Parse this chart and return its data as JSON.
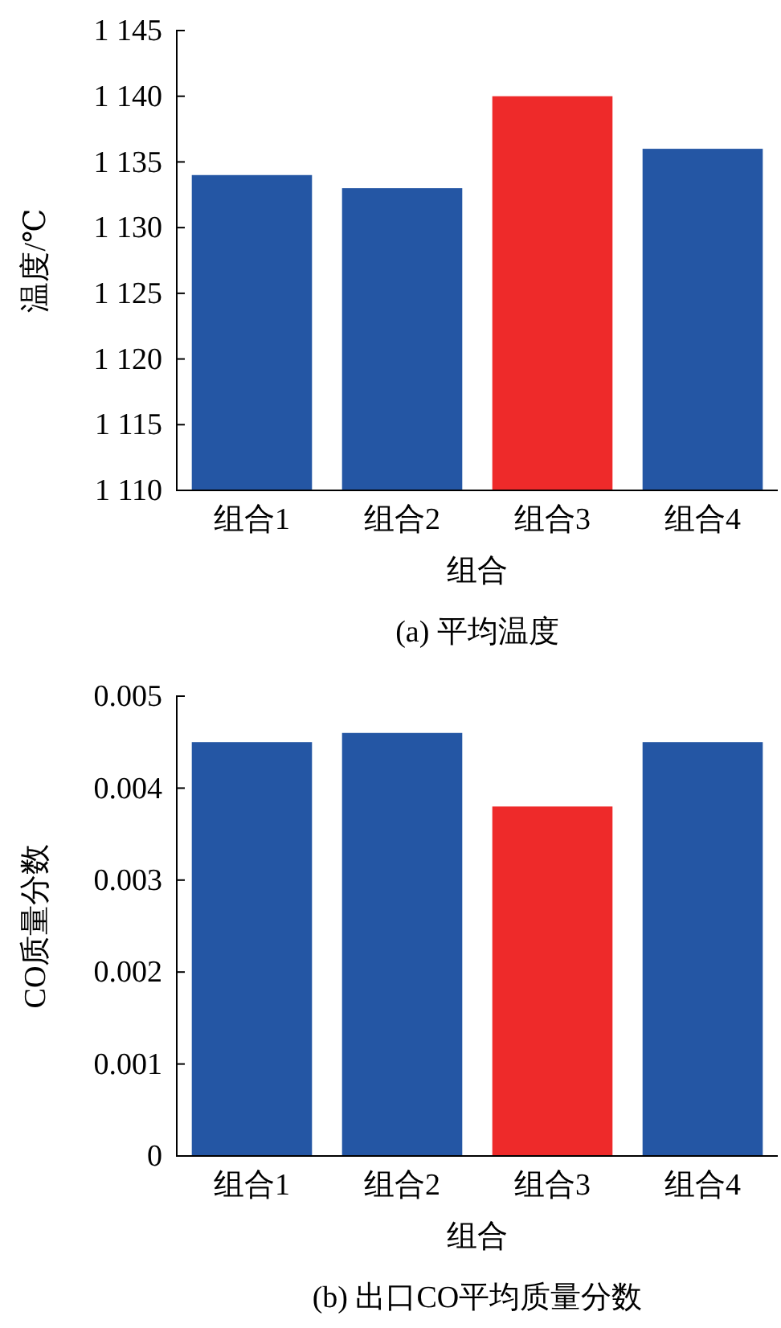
{
  "chart_data": [
    {
      "type": "bar",
      "title": "(a) 平均温度",
      "xlabel": "组合",
      "ylabel": "温度/℃",
      "categories": [
        "组合1",
        "组合2",
        "组合3",
        "组合4"
      ],
      "values": [
        1134,
        1133,
        1140,
        1136
      ],
      "colors": [
        "#2456a4",
        "#2456a4",
        "#ee2a2a",
        "#2456a4"
      ],
      "ylim": [
        1110,
        1145
      ],
      "yticks": [
        {
          "value": 1110,
          "label": "1 110"
        },
        {
          "value": 1115,
          "label": "1 115"
        },
        {
          "value": 1120,
          "label": "1 120"
        },
        {
          "value": 1125,
          "label": "1 125"
        },
        {
          "value": 1130,
          "label": "1 130"
        },
        {
          "value": 1135,
          "label": "1 135"
        },
        {
          "value": 1140,
          "label": "1 140"
        },
        {
          "value": 1145,
          "label": "1 145"
        }
      ],
      "grid": false
    },
    {
      "type": "bar",
      "title": "(b) 出口CO平均质量分数",
      "xlabel": "组合",
      "ylabel": "CO质量分数",
      "categories": [
        "组合1",
        "组合2",
        "组合3",
        "组合4"
      ],
      "values": [
        0.0045,
        0.0046,
        0.0038,
        0.0045
      ],
      "colors": [
        "#2456a4",
        "#2456a4",
        "#ee2a2a",
        "#2456a4"
      ],
      "ylim": [
        0,
        0.005
      ],
      "yticks": [
        0,
        0.001,
        0.002,
        0.003,
        0.004,
        0.005
      ],
      "grid": false
    }
  ]
}
